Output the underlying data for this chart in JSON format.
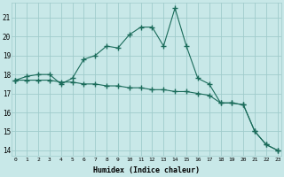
{
  "x": [
    0,
    1,
    2,
    3,
    4,
    5,
    6,
    7,
    8,
    9,
    10,
    11,
    12,
    13,
    14,
    15,
    16,
    17,
    18,
    19,
    20,
    21,
    22,
    23
  ],
  "line1": [
    17.7,
    17.9,
    18.0,
    18.0,
    17.5,
    17.8,
    18.8,
    19.0,
    19.5,
    19.4,
    20.1,
    20.5,
    20.5,
    19.5,
    21.5,
    19.5,
    17.8,
    17.5,
    16.5,
    16.5,
    16.4,
    15.0,
    14.3,
    14.0
  ],
  "line2": [
    17.7,
    17.7,
    17.7,
    17.7,
    17.6,
    17.6,
    17.5,
    17.5,
    17.4,
    17.4,
    17.3,
    17.3,
    17.2,
    17.2,
    17.1,
    17.1,
    17.0,
    16.9,
    16.5,
    16.5,
    16.4,
    15.0,
    14.3,
    14.0
  ],
  "color": "#1a6b5a",
  "bg_color": "#c8e8e8",
  "grid_color": "#a0cccc",
  "xlabel": "Humidex (Indice chaleur)",
  "ylim": [
    13.7,
    21.8
  ],
  "yticks": [
    14,
    15,
    16,
    17,
    18,
    19,
    20,
    21
  ],
  "xticks": [
    0,
    1,
    2,
    3,
    4,
    5,
    6,
    7,
    8,
    9,
    10,
    11,
    12,
    13,
    14,
    15,
    16,
    17,
    18,
    19,
    20,
    21,
    22,
    23
  ],
  "xlim": [
    -0.3,
    23.3
  ]
}
